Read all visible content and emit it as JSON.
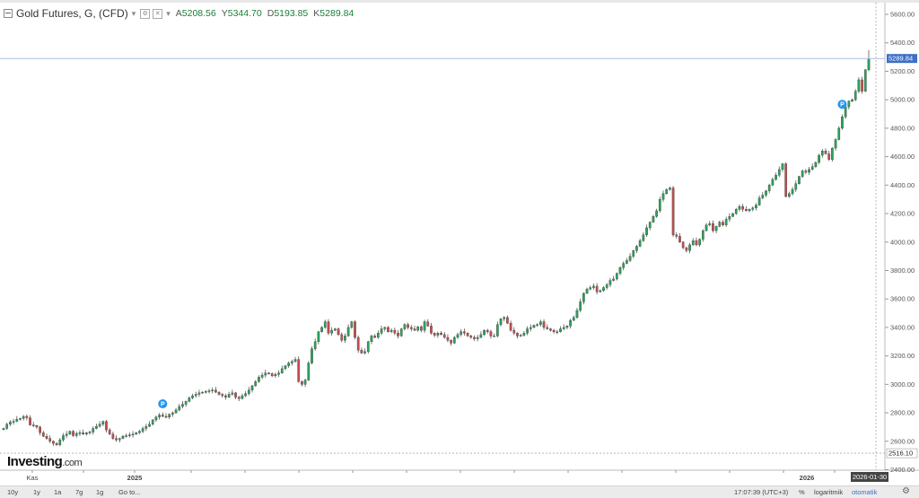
{
  "header": {
    "symbol": "Gold Futures, G, (CFD)",
    "caret": "▾",
    "ohlc": [
      {
        "label": "A",
        "value": "5208.56"
      },
      {
        "label": "Y",
        "value": "5344.70"
      },
      {
        "label": "D",
        "value": "5193.85"
      },
      {
        "label": "K",
        "value": "5289.84"
      }
    ]
  },
  "logo": {
    "brand": "Investing",
    "suffix": ".com"
  },
  "bottom_bar": {
    "periods": [
      "10y",
      "1y",
      "1a",
      "7g",
      "1g"
    ],
    "goto": "Go to...",
    "time": "17:07:39 (UTC+3)",
    "percent": "%",
    "log": "logaritmik",
    "auto": "otomatik"
  },
  "colors": {
    "up": "#26a65b",
    "down": "#cc4b4b",
    "axis": "#555555",
    "price_line": "#a9bfe3",
    "label_bg": "#3d6fc5"
  },
  "chart_data": {
    "type": "candlestick",
    "title": "Gold Futures, G, (CFD)",
    "y_ticks": [
      2400,
      2600,
      2800,
      3000,
      3200,
      3400,
      3600,
      3800,
      4000,
      4200,
      4400,
      4600,
      4800,
      5000,
      5200,
      5400,
      5600
    ],
    "ylim": [
      2380,
      5680
    ],
    "x_labels": [
      "Kas",
      "2025",
      "2026"
    ],
    "last_price": "5289.84",
    "low_price": "2516.10",
    "crosshair_date": "2026-01-30",
    "markers": [
      {
        "label": "P",
        "index": 48
      },
      {
        "label": "P",
        "index": 253
      }
    ],
    "closes": [
      2690,
      2720,
      2735,
      2740,
      2755,
      2760,
      2775,
      2765,
      2715,
      2710,
      2700,
      2660,
      2635,
      2620,
      2600,
      2585,
      2575,
      2610,
      2640,
      2650,
      2670,
      2640,
      2655,
      2660,
      2650,
      2660,
      2665,
      2690,
      2705,
      2720,
      2740,
      2680,
      2650,
      2620,
      2610,
      2620,
      2635,
      2640,
      2645,
      2650,
      2660,
      2670,
      2690,
      2705,
      2720,
      2750,
      2770,
      2785,
      2775,
      2770,
      2790,
      2800,
      2820,
      2845,
      2860,
      2880,
      2905,
      2920,
      2930,
      2940,
      2945,
      2950,
      2955,
      2960,
      2945,
      2930,
      2920,
      2910,
      2930,
      2940,
      2910,
      2900,
      2920,
      2935,
      2960,
      2990,
      3020,
      3050,
      3065,
      3080,
      3075,
      3060,
      3070,
      3080,
      3110,
      3130,
      3150,
      3160,
      3175,
      3020,
      3000,
      3030,
      3150,
      3250,
      3300,
      3370,
      3400,
      3440,
      3360,
      3380,
      3390,
      3350,
      3310,
      3340,
      3400,
      3440,
      3330,
      3240,
      3220,
      3230,
      3300,
      3340,
      3330,
      3360,
      3390,
      3400,
      3370,
      3380,
      3360,
      3340,
      3390,
      3420,
      3400,
      3390,
      3380,
      3405,
      3380,
      3440,
      3410,
      3360,
      3345,
      3360,
      3350,
      3330,
      3310,
      3290,
      3330,
      3350,
      3370,
      3360,
      3340,
      3330,
      3320,
      3330,
      3350,
      3380,
      3370,
      3340,
      3340,
      3420,
      3460,
      3470,
      3430,
      3380,
      3360,
      3340,
      3345,
      3360,
      3390,
      3400,
      3415,
      3420,
      3440,
      3400,
      3390,
      3380,
      3370,
      3370,
      3390,
      3400,
      3410,
      3450,
      3470,
      3520,
      3580,
      3640,
      3670,
      3680,
      3690,
      3650,
      3660,
      3680,
      3700,
      3730,
      3740,
      3780,
      3820,
      3850,
      3870,
      3900,
      3940,
      3970,
      4010,
      4050,
      4100,
      4140,
      4180,
      4220,
      4300,
      4340,
      4370,
      4380,
      4050,
      4040,
      4000,
      3960,
      3940,
      3980,
      4010,
      3980,
      4020,
      4080,
      4120,
      4130,
      4080,
      4110,
      4140,
      4120,
      4160,
      4180,
      4200,
      4230,
      4250,
      4230,
      4220,
      4230,
      4240,
      4260,
      4310,
      4330,
      4360,
      4400,
      4440,
      4470,
      4510,
      4550,
      4320,
      4340,
      4370,
      4410,
      4460,
      4500,
      4490,
      4510,
      4530,
      4560,
      4610,
      4640,
      4620,
      4580,
      4660,
      4720,
      4800,
      4880,
      4950,
      4990,
      5000,
      5060,
      5140,
      5060,
      5210,
      5289.84
    ]
  }
}
